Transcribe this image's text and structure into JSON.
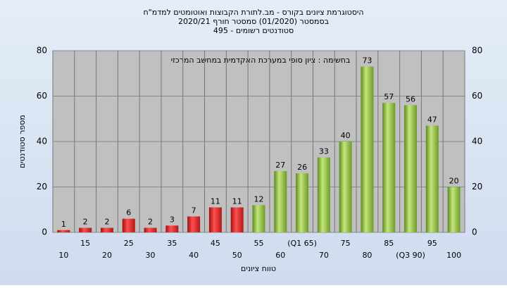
{
  "chart_data": {
    "type": "bar",
    "title": [
      "היסטוגרמת ציונים בקורס - מב.לתורת הקבוצות ואוטומטים למדמ\"ח",
      "בסמסטר  (01/2020)  סמסטר חורף 2020/21",
      "סטודנטים רשומים - 495"
    ],
    "annotation": "בחשימה : ציון סופי במערכת האקדמית במחשב המרכזי",
    "x_label": "טווח ציונים",
    "y_label": "מספר סטודנטים",
    "categories": [
      "10",
      "15",
      "20",
      "25",
      "30",
      "35",
      "40",
      "45",
      "50",
      "55",
      "60",
      "(Q1 65)",
      "70",
      "75",
      "80",
      "85",
      "(Q3 90)",
      "95",
      "100"
    ],
    "values": [
      1,
      2,
      2,
      6,
      2,
      3,
      7,
      11,
      11,
      12,
      27,
      26,
      33,
      40,
      73,
      57,
      56,
      47,
      20
    ],
    "colors": [
      "red",
      "red",
      "red",
      "red",
      "red",
      "red",
      "red",
      "red",
      "red",
      "green",
      "green",
      "green",
      "green",
      "green",
      "green",
      "green",
      "green",
      "green",
      "green"
    ],
    "ylim": [
      0,
      80
    ],
    "yticks": [
      0,
      20,
      40,
      60,
      80
    ],
    "grid": true
  }
}
